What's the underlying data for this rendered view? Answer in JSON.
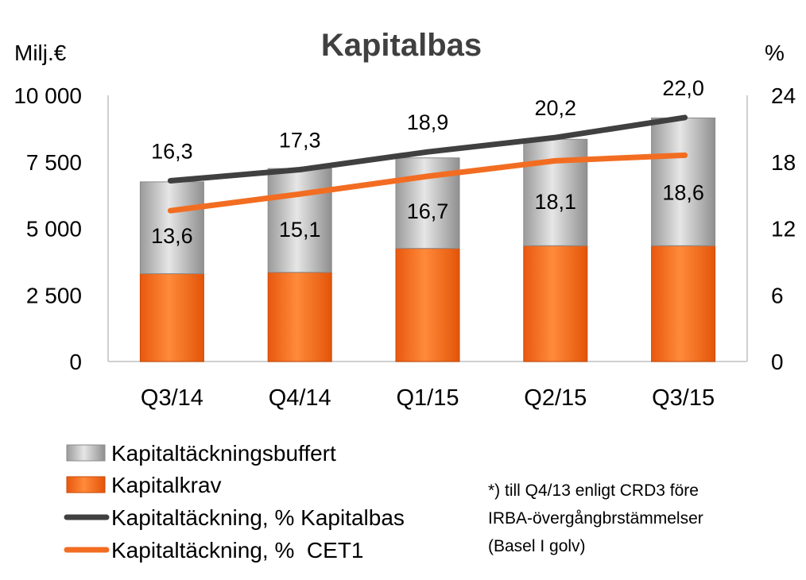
{
  "chart_data": {
    "type": "bar",
    "title": "Kapitalbas",
    "ylabel_left": "Milj.€",
    "ylabel_right": "%",
    "categories": [
      "Q3/14",
      "Q4/14",
      "Q1/15",
      "Q2/15",
      "Q3/15"
    ],
    "ylim_left": [
      0,
      10000
    ],
    "ylim_right": [
      0,
      24
    ],
    "yticks_left": [
      "0",
      "2 500",
      "5 000",
      "7 500",
      "10 000"
    ],
    "yticks_right": [
      "0",
      "6",
      "12",
      "18",
      "24"
    ],
    "stacked_series": [
      {
        "name": "Kapitalkrav",
        "values": [
          3300,
          3350,
          4250,
          4350,
          4350
        ],
        "color": "#f26d21"
      },
      {
        "name": "Kapitaltäckningsbuffert",
        "values": [
          3450,
          3900,
          3400,
          4000,
          4800
        ],
        "color": "#b8b8b8"
      }
    ],
    "line_series": [
      {
        "name": "Kapitaltäckning, % Kapitalbas",
        "values": [
          16.3,
          17.3,
          18.9,
          20.2,
          22.0
        ],
        "labels": [
          "16,3",
          "17,3",
          "18,9",
          "20,2",
          "22,0"
        ],
        "color": "#404040"
      },
      {
        "name": "Kapitaltäckning, %  CET1",
        "values": [
          13.6,
          15.1,
          16.7,
          18.1,
          18.6
        ],
        "labels": [
          "13,6",
          "15,1",
          "16,7",
          "18,1",
          "18,6"
        ],
        "color": "#f26d21"
      }
    ],
    "legend": [
      {
        "label": "Kapitaltäckningsbuffert",
        "kind": "box-gray"
      },
      {
        "label": "Kapitalkrav",
        "kind": "box-orange"
      },
      {
        "label": "Kapitaltäckning, % Kapitalbas",
        "kind": "line-dark"
      },
      {
        "label": "Kapitaltäckning, %  CET1",
        "kind": "line-orange"
      }
    ],
    "note": [
      "*) till Q4/13 enligt CRD3 före",
      "IRBA-övergångbrstämmelser",
      "(Basel I golv)"
    ]
  }
}
